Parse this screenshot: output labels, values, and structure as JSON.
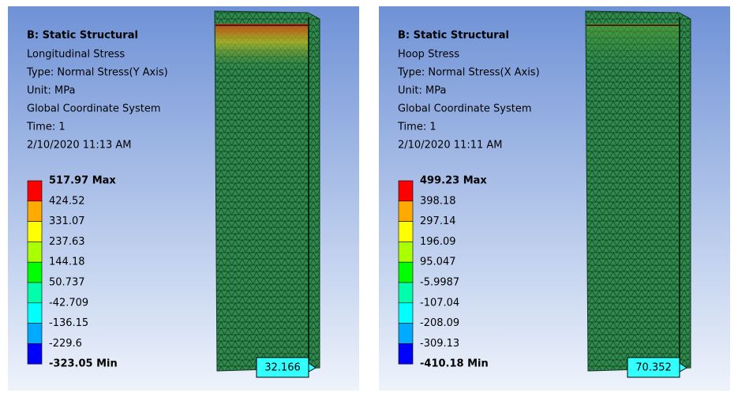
{
  "panels": [
    {
      "title": "B: Static Structural",
      "lines": [
        "Longitudinal Stress",
        "Type: Normal Stress(Y Axis)",
        "Unit: MPa",
        "Global Coordinate System",
        "Time: 1",
        "2/10/2020 11:13 AM"
      ],
      "legend": [
        "517.97 Max",
        "424.52",
        "331.07",
        "237.63",
        "144.18",
        "50.737",
        "-42.709",
        "-136.15",
        "-229.6",
        "-323.05 Min"
      ],
      "probe": "32.166"
    },
    {
      "title": "B: Static Structural",
      "lines": [
        "Hoop Stress",
        "Type: Normal Stress(X Axis)",
        "Unit: MPa",
        "Global Coordinate System",
        "Time: 1",
        "2/10/2020 11:11 AM"
      ],
      "legend": [
        "499.23 Max",
        "398.18",
        "297.14",
        "196.09",
        "95.047",
        "-5.9987",
        "-107.04",
        "-208.09",
        "-309.13",
        "-410.18 Min"
      ],
      "probe": "70.352"
    }
  ]
}
